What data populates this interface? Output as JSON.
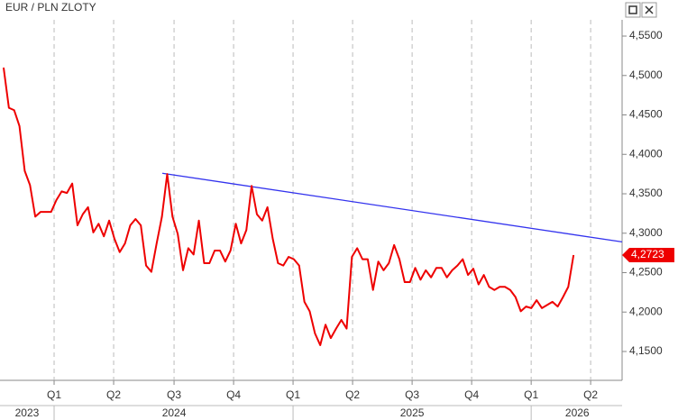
{
  "chart_data": {
    "type": "line",
    "title": "EUR / PLN ZLOTY",
    "series": [
      {
        "name": "EUR / PLN",
        "color": "#ee0000",
        "values": [
          4.51,
          4.459,
          4.456,
          4.436,
          4.379,
          4.361,
          4.321,
          4.327,
          4.327,
          4.327,
          4.342,
          4.353,
          4.351,
          4.363,
          4.31,
          4.324,
          4.333,
          4.301,
          4.312,
          4.296,
          4.316,
          4.293,
          4.276,
          4.287,
          4.31,
          4.318,
          4.31,
          4.259,
          4.251,
          4.287,
          4.321,
          4.375,
          4.321,
          4.299,
          4.253,
          4.281,
          4.273,
          4.316,
          4.262,
          4.262,
          4.278,
          4.278,
          4.264,
          4.278,
          4.312,
          4.287,
          4.304,
          4.36,
          4.324,
          4.316,
          4.333,
          4.293,
          4.262,
          4.259,
          4.27,
          4.267,
          4.259,
          4.213,
          4.201,
          4.173,
          4.158,
          4.184,
          4.167,
          4.179,
          4.19,
          4.179,
          4.27,
          4.281,
          4.267,
          4.267,
          4.228,
          4.264,
          4.253,
          4.262,
          4.285,
          4.267,
          4.238,
          4.238,
          4.256,
          4.241,
          4.253,
          4.244,
          4.256,
          4.256,
          4.244,
          4.253,
          4.259,
          4.267,
          4.247,
          4.255,
          4.235,
          4.247,
          4.232,
          4.228,
          4.232,
          4.232,
          4.228,
          4.219,
          4.201,
          4.207,
          4.205,
          4.215,
          4.205,
          4.209,
          4.213,
          4.207,
          4.219,
          4.232,
          4.2723
        ]
      }
    ],
    "last_value_label": "4,2723",
    "trendline": {
      "color": "#3333ee",
      "x": [
        30.08,
        117.2
      ],
      "values": [
        4.376,
        4.289
      ]
    },
    "xlim": [
      -0.684,
      117.2
    ],
    "xticks": [
      {
        "value": 9.57,
        "label": "Q1"
      },
      {
        "value": 20.85,
        "label": "Q2"
      },
      {
        "value": 32.3,
        "label": "Q3"
      },
      {
        "value": 43.58,
        "label": "Q4"
      },
      {
        "value": 54.85,
        "label": "Q1"
      },
      {
        "value": 66.13,
        "label": "Q2"
      },
      {
        "value": 77.41,
        "label": "Q3"
      },
      {
        "value": 88.69,
        "label": "Q4"
      },
      {
        "value": 99.97,
        "label": "Q1"
      },
      {
        "value": 111.24,
        "label": "Q2"
      }
    ],
    "years": [
      {
        "value": 4.44,
        "label": "2023"
      },
      {
        "value": 32.3,
        "label": "2024"
      },
      {
        "value": 77.41,
        "label": "2025"
      },
      {
        "value": 108.7,
        "label": "2026"
      }
    ],
    "year_breaks": [
      9.57,
      54.85,
      99.97
    ],
    "ylim": [
      4.1134,
      4.5706
    ],
    "yticks": [
      {
        "value": 4.15,
        "label": "4,1500"
      },
      {
        "value": 4.2,
        "label": "4,2000"
      },
      {
        "value": 4.25,
        "label": "4,2500"
      },
      {
        "value": 4.3,
        "label": "4,3000"
      },
      {
        "value": 4.35,
        "label": "4,3500"
      },
      {
        "value": 4.4,
        "label": "4,4000"
      },
      {
        "value": 4.45,
        "label": "4,4500"
      },
      {
        "value": 4.5,
        "label": "4,5000"
      },
      {
        "value": 4.55,
        "label": "4,5500"
      }
    ],
    "grid": true
  }
}
